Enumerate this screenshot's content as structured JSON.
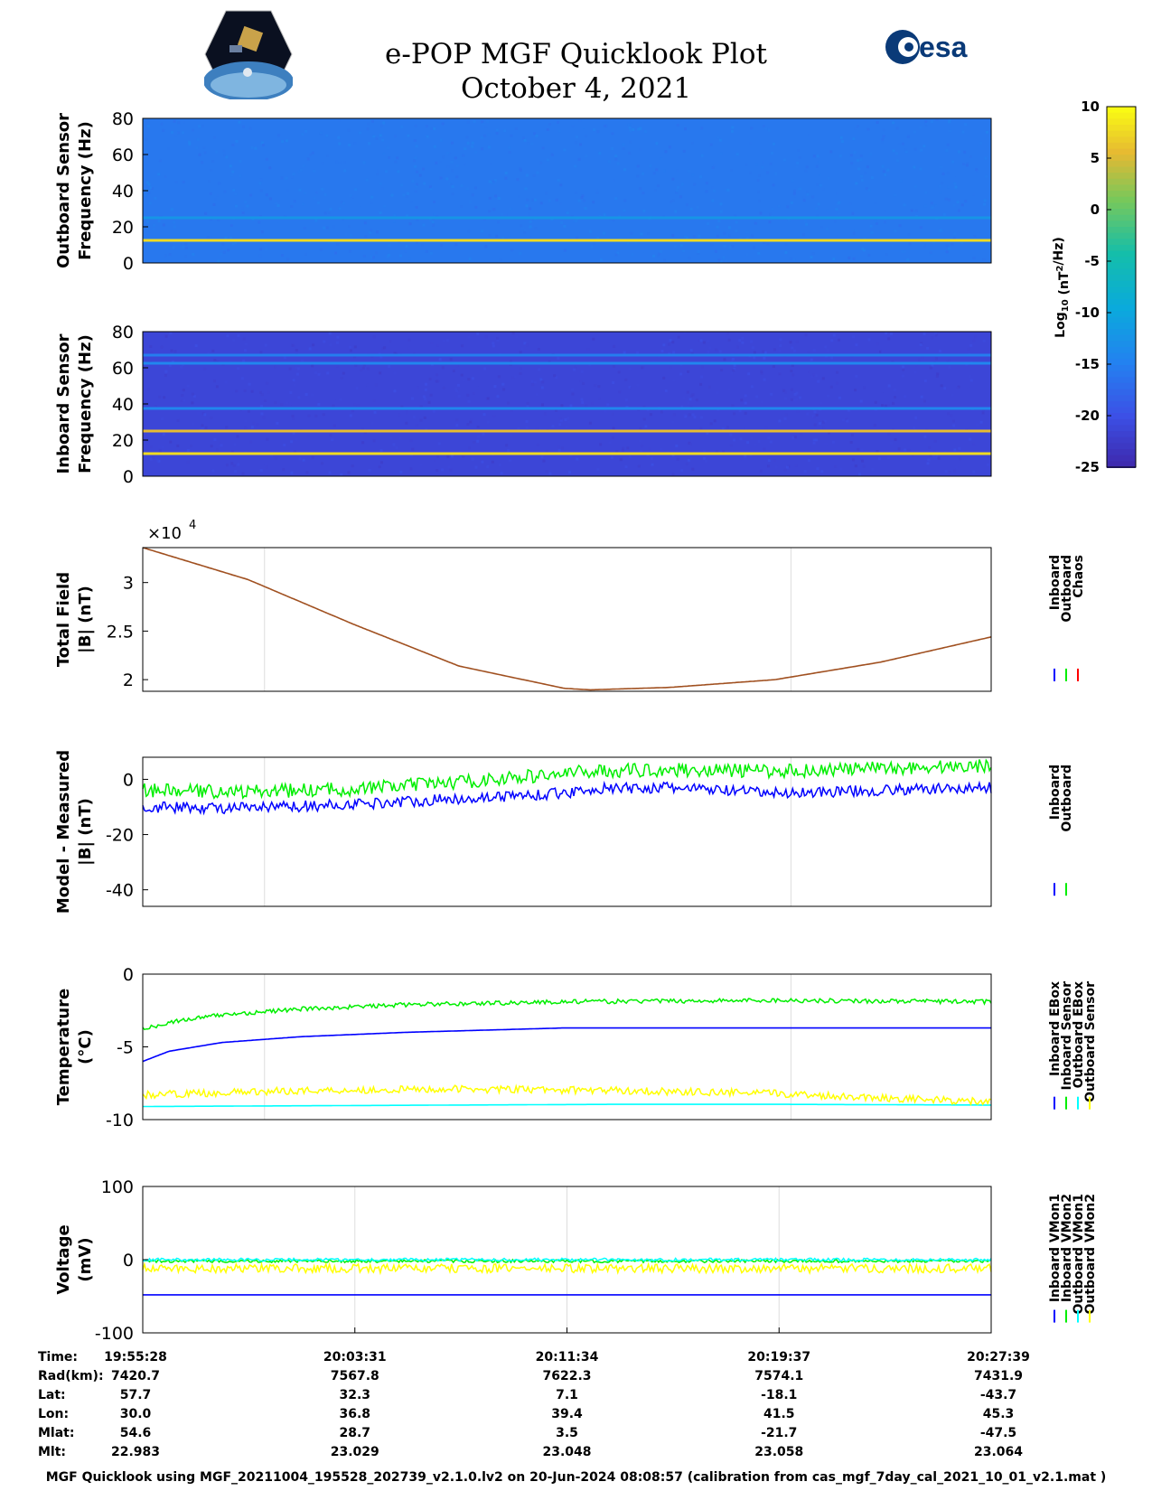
{
  "header": {
    "title": "e-POP MGF Quicklook Plot",
    "date": "October 4, 2021",
    "left_logo": "CASSIOPE mission logo",
    "right_logo": "esa logo",
    "right_logo_text": "esa"
  },
  "footer": "MGF Quicklook using MGF_20211004_195528_202739_v2.1.0.lv2 on 20-Jun-2024 08:08:57 (calibration from cas_mgf_7day_cal_2021_10_01_v2.1.mat )",
  "colors": {
    "inboard": "#0000ff",
    "outboard": "#00ee00",
    "chaos": "#ff0000",
    "yellow": "#ffff00",
    "cyan": "#00ffff",
    "grid": "#dddddd"
  },
  "chart_data": [
    {
      "type": "heatmap",
      "ylabel": [
        "Outboard Sensor",
        "Frequency (Hz)"
      ],
      "ylim": [
        0,
        80
      ],
      "yticks": [
        "0",
        "20",
        "40",
        "60",
        "80"
      ],
      "background_log10": -15.5,
      "lines": [
        {
          "freq": 12.5,
          "value": 8
        },
        {
          "freq": 25,
          "value": -12
        }
      ]
    },
    {
      "type": "heatmap",
      "ylabel": [
        "Inboard Sensor",
        "Frequency (Hz)"
      ],
      "ylim": [
        0,
        80
      ],
      "yticks": [
        "0",
        "20",
        "40",
        "60",
        "80"
      ],
      "background_log10": -21,
      "lines": [
        {
          "freq": 12.5,
          "value": 8
        },
        {
          "freq": 25,
          "value": 6
        },
        {
          "freq": 37.5,
          "value": -14
        },
        {
          "freq": 62.5,
          "value": -14
        },
        {
          "freq": 67,
          "value": -15
        }
      ]
    },
    {
      "type": "colorbar",
      "label": "Log",
      "label_sub": "10",
      "label_unit_a": " (nT",
      "label_sup": "2",
      "label_unit_b": "/Hz)",
      "range": [
        -25,
        10
      ],
      "ticks": [
        "10",
        "5",
        "0",
        "-5",
        "-10",
        "-15",
        "-20",
        "-25"
      ]
    },
    {
      "type": "line",
      "ylabel": [
        "Total Field",
        "|B| (nT)"
      ],
      "ylim": [
        18800,
        33600
      ],
      "yticks": [
        "2",
        "2.5",
        "3"
      ],
      "multiplier_base": "×10",
      "multiplier_exp": "4",
      "legend": [
        "Inboard",
        "Outboard",
        "Chaos"
      ],
      "series": [
        {
          "name": "Chaos",
          "x": [
            0,
            4,
            8,
            12,
            16,
            17,
            20,
            24,
            28,
            32.2
          ],
          "y": [
            33600,
            30300,
            25700,
            21400,
            19100,
            18950,
            19200,
            20000,
            21800,
            24400
          ]
        }
      ]
    },
    {
      "type": "line",
      "ylabel": [
        "Model - Measured",
        "|B| (nT)"
      ],
      "ylim": [
        -46,
        8
      ],
      "yticks": [
        "0",
        "-20",
        "-40"
      ],
      "legend": [
        "Inboard",
        "Outboard"
      ],
      "series": [
        {
          "name": "Outboard",
          "x": [
            0,
            4,
            8,
            12,
            16,
            17,
            20,
            24,
            28,
            32.2
          ],
          "y": [
            -4,
            -4.5,
            -3.5,
            -1,
            2,
            3,
            3.5,
            3,
            4,
            5
          ],
          "noise": 2.5
        },
        {
          "name": "Inboard",
          "x": [
            0,
            4,
            8,
            12,
            16,
            17,
            20,
            24,
            28,
            32.2
          ],
          "y": [
            -10,
            -10.5,
            -9,
            -7,
            -5,
            -3.5,
            -3,
            -5,
            -4,
            -3
          ],
          "noise": 2
        }
      ]
    },
    {
      "type": "line",
      "ylabel": [
        "Temperature",
        "(°C)"
      ],
      "ylim": [
        -10,
        0
      ],
      "yticks": [
        "0",
        "-5",
        "-10"
      ],
      "legend": [
        "Inboard EBox",
        "Inboard Sensor",
        "Outboard EBox",
        "Outboard Sensor"
      ],
      "series": [
        {
          "name": "Inboard EBox",
          "x": [
            0,
            1,
            3,
            6,
            10,
            16,
            24,
            32.2
          ],
          "y": [
            -6,
            -5.3,
            -4.7,
            -4.3,
            -4,
            -3.7,
            -3.7,
            -3.7
          ]
        },
        {
          "name": "Inboard Sensor",
          "x": [
            0,
            1,
            3,
            6,
            10,
            16,
            24,
            32.2
          ],
          "y": [
            -3.8,
            -3.3,
            -2.8,
            -2.4,
            -2.1,
            -1.9,
            -1.8,
            -1.9
          ],
          "noise": 0.15
        },
        {
          "name": "Outboard EBox",
          "x": [
            0,
            6,
            12,
            18,
            24,
            32.2
          ],
          "y": [
            -9.1,
            -9.05,
            -9,
            -8.95,
            -8.95,
            -9
          ]
        },
        {
          "name": "Outboard Sensor",
          "x": [
            0,
            6,
            12,
            18,
            24,
            32.2
          ],
          "y": [
            -8.3,
            -8.0,
            -7.9,
            -8.0,
            -8.2,
            -8.8
          ],
          "noise": 0.25
        }
      ]
    },
    {
      "type": "line",
      "ylabel": [
        "Voltage",
        "(mV)"
      ],
      "ylim": [
        -100,
        100
      ],
      "yticks": [
        "100",
        "0",
        "-100"
      ],
      "legend": [
        "Inboard VMon1",
        "Inboard VMon2",
        "Outboard VMon1",
        "Outboard VMon2"
      ],
      "series": [
        {
          "name": "Inboard VMon1",
          "x": [
            0,
            32.2
          ],
          "y": [
            -48,
            -48
          ]
        },
        {
          "name": "Inboard VMon2",
          "x": [
            0,
            32.2
          ],
          "y": [
            -2,
            -2
          ],
          "noise": 2
        },
        {
          "name": "Outboard VMon1",
          "x": [
            0,
            32.2
          ],
          "y": [
            0,
            0
          ],
          "noise": 2
        },
        {
          "name": "Outboard VMon2",
          "x": [
            0,
            32.2
          ],
          "y": [
            -12,
            -12
          ],
          "noise": 6
        }
      ]
    }
  ],
  "x_axis": {
    "range_minutes": [
      0,
      32.2
    ],
    "tick_minutes": [
      0,
      8.05,
      16.1,
      24.15,
      32.2
    ],
    "rows": [
      {
        "label": "Time:",
        "values": [
          "19:55:28",
          "20:03:31",
          "20:11:34",
          "20:19:37",
          "20:27:39"
        ]
      },
      {
        "label": "Rad(km):",
        "values": [
          "7420.7",
          "7567.8",
          "7622.3",
          "7574.1",
          "7431.9"
        ]
      },
      {
        "label": "Lat:",
        "values": [
          "57.7",
          "32.3",
          "7.1",
          "-18.1",
          "-43.7"
        ]
      },
      {
        "label": "Lon:",
        "values": [
          "30.0",
          "36.8",
          "39.4",
          "41.5",
          "45.3"
        ]
      },
      {
        "label": "Mlat:",
        "values": [
          "54.6",
          "28.7",
          "3.5",
          "-21.7",
          "-47.5"
        ]
      },
      {
        "label": "Mlt:",
        "values": [
          "22.983",
          "23.029",
          "23.048",
          "23.058",
          "23.064"
        ]
      }
    ]
  }
}
